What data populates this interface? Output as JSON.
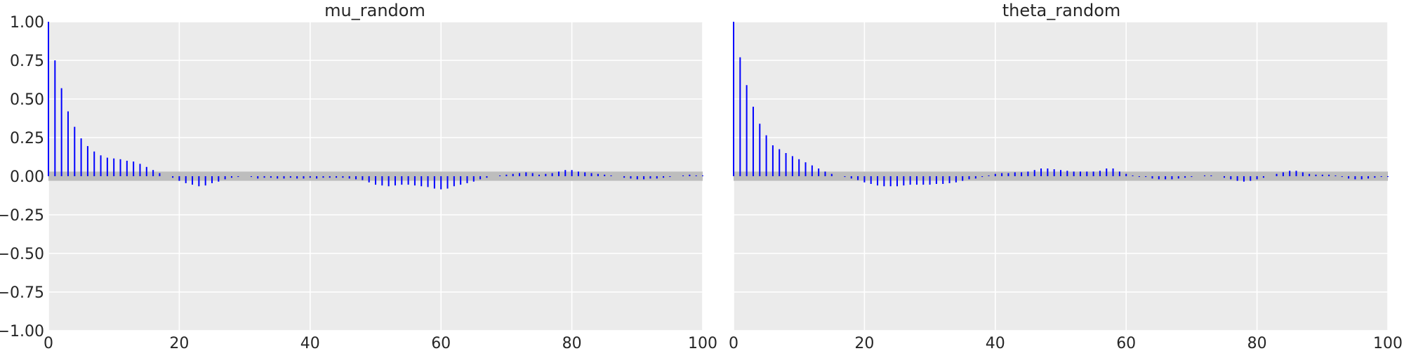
{
  "chart_data": [
    {
      "type": "bar",
      "style": "stem",
      "title": "mu_random",
      "xlabel": "",
      "ylabel": "",
      "xlim": [
        0,
        100
      ],
      "ylim": [
        -1.0,
        1.0
      ],
      "xticks": [
        "0",
        "20",
        "40",
        "60",
        "80",
        "100"
      ],
      "yticks": [
        "1.00",
        "0.75",
        "0.50",
        "0.25",
        "0.00",
        "−0.25",
        "−0.50",
        "−0.75",
        "−1.00"
      ],
      "grid": true,
      "confidence_band": [
        -0.03,
        0.03
      ],
      "series": [
        {
          "color": "#0000ff",
          "values": [
            1.0,
            0.75,
            0.57,
            0.42,
            0.32,
            0.245,
            0.195,
            0.16,
            0.135,
            0.12,
            0.115,
            0.11,
            0.1,
            0.095,
            0.08,
            0.06,
            0.04,
            0.02,
            0.0,
            -0.01,
            -0.03,
            -0.045,
            -0.055,
            -0.065,
            -0.06,
            -0.045,
            -0.035,
            -0.02,
            -0.01,
            -0.005,
            0.0,
            -0.005,
            -0.015,
            -0.01,
            -0.01,
            -0.015,
            -0.015,
            -0.01,
            -0.015,
            -0.015,
            -0.01,
            -0.015,
            -0.01,
            -0.01,
            -0.01,
            -0.01,
            -0.015,
            -0.02,
            -0.025,
            -0.04,
            -0.055,
            -0.06,
            -0.065,
            -0.06,
            -0.055,
            -0.055,
            -0.06,
            -0.065,
            -0.07,
            -0.08,
            -0.085,
            -0.08,
            -0.065,
            -0.055,
            -0.045,
            -0.035,
            -0.02,
            -0.01,
            0.0,
            0.005,
            0.01,
            0.015,
            0.02,
            0.025,
            0.02,
            0.01,
            0.015,
            0.02,
            0.03,
            0.04,
            0.04,
            0.03,
            0.025,
            0.02,
            0.015,
            0.01,
            0.005,
            0.0,
            -0.01,
            -0.015,
            -0.02,
            -0.02,
            -0.015,
            -0.015,
            -0.01,
            -0.005,
            0.0,
            0.005,
            0.01,
            0.005,
            0.005
          ]
        }
      ]
    },
    {
      "type": "bar",
      "style": "stem",
      "title": "theta_random",
      "xlabel": "",
      "ylabel": "",
      "xlim": [
        0,
        100
      ],
      "ylim": [
        -1.0,
        1.0
      ],
      "xticks": [
        "0",
        "20",
        "40",
        "60",
        "80",
        "100"
      ],
      "yticks": [],
      "grid": true,
      "confidence_band": [
        -0.03,
        0.03
      ],
      "series": [
        {
          "color": "#0000ff",
          "values": [
            1.0,
            0.77,
            0.59,
            0.45,
            0.34,
            0.265,
            0.2,
            0.175,
            0.15,
            0.13,
            0.11,
            0.09,
            0.07,
            0.05,
            0.03,
            0.015,
            0.0,
            -0.005,
            -0.015,
            -0.025,
            -0.04,
            -0.05,
            -0.06,
            -0.065,
            -0.065,
            -0.065,
            -0.06,
            -0.055,
            -0.055,
            -0.055,
            -0.055,
            -0.05,
            -0.05,
            -0.045,
            -0.04,
            -0.03,
            -0.02,
            -0.015,
            -0.005,
            0.005,
            0.015,
            0.02,
            0.02,
            0.025,
            0.025,
            0.03,
            0.04,
            0.05,
            0.05,
            0.045,
            0.04,
            0.035,
            0.03,
            0.03,
            0.03,
            0.03,
            0.035,
            0.05,
            0.05,
            0.03,
            0.015,
            0.005,
            -0.005,
            -0.005,
            -0.015,
            -0.02,
            -0.02,
            -0.02,
            -0.015,
            -0.01,
            -0.005,
            0.0,
            0.005,
            0.005,
            0.0,
            -0.01,
            -0.02,
            -0.03,
            -0.035,
            -0.03,
            -0.02,
            -0.01,
            0.0,
            0.015,
            0.025,
            0.035,
            0.035,
            0.025,
            0.015,
            0.01,
            0.01,
            0.01,
            0.005,
            -0.005,
            -0.015,
            -0.02,
            -0.02,
            -0.015,
            -0.01,
            -0.005,
            -0.005
          ]
        }
      ]
    }
  ]
}
